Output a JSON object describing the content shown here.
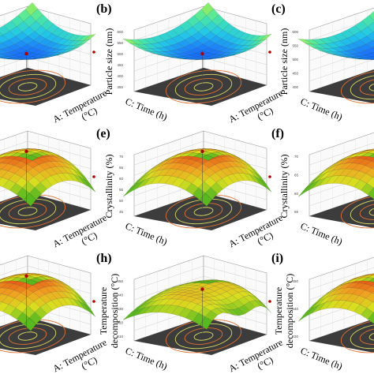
{
  "colors": {
    "floor": "#3c3c3c",
    "contour_a": "#d8d860",
    "contour_b": "#e07030",
    "wall_line": "#9a9a9a",
    "dot": "#b00000",
    "ramp_cool": [
      "#1a6cff",
      "#22c8e8",
      "#4ee8a0",
      "#b8f040"
    ],
    "ramp_warm": [
      "#58b820",
      "#d8e020",
      "#f0a020",
      "#e03010"
    ]
  },
  "chart_data": [
    {
      "panel": "",
      "type": "surface",
      "zlabel": "",
      "xlabel": "A: Temperature (°C)",
      "ylabel": "",
      "surface_shape": "bowl",
      "palette": "cool",
      "ticks": [],
      "visible_crop": "right"
    },
    {
      "panel": "(b)",
      "type": "surface",
      "zlabel": "Particle size (nm)",
      "xlabel": "A: Temperature (°C)",
      "ylabel": "C: Time (h)",
      "surface_shape": "bowl",
      "palette": "cool",
      "ticks": [
        "600",
        "550",
        "500",
        "450",
        "400",
        "350"
      ],
      "visible_crop": "full"
    },
    {
      "panel": "(c)",
      "type": "surface",
      "zlabel": "Particle size (nm)",
      "xlabel": "",
      "ylabel": "C: Time (h)",
      "surface_shape": "bowl",
      "palette": "cool",
      "ticks": [
        "600",
        "550",
        "500",
        "450",
        "400"
      ],
      "visible_crop": "left"
    },
    {
      "panel": "",
      "type": "surface",
      "zlabel": "",
      "xlabel": "A: Temperature (°C)",
      "ylabel": "",
      "surface_shape": "dome",
      "palette": "warm",
      "ticks": [],
      "visible_crop": "right"
    },
    {
      "panel": "(e)",
      "type": "surface",
      "zlabel": "Crystallinity (%)",
      "xlabel": "A: Temperature (°C)",
      "ylabel": "C: Time (h)",
      "surface_shape": "dome",
      "palette": "warm",
      "ticks": [
        "70",
        "65",
        "60",
        "55",
        "50",
        "45"
      ],
      "visible_crop": "full"
    },
    {
      "panel": "(f)",
      "type": "surface",
      "zlabel": "Crystallinity (%)",
      "xlabel": "",
      "ylabel": "C: Time (h)",
      "surface_shape": "dome",
      "palette": "warm",
      "ticks": [
        "70",
        "65",
        "60",
        "55"
      ],
      "visible_crop": "left"
    },
    {
      "panel": "",
      "type": "surface",
      "zlabel": "",
      "xlabel": "A: Temperature (°C)",
      "ylabel": "",
      "surface_shape": "dome",
      "palette": "warm",
      "ticks": [],
      "visible_crop": "right"
    },
    {
      "panel": "(h)",
      "type": "surface",
      "zlabel": "Temperature decomposition (°C)",
      "xlabel": "A: Temperature (°C)",
      "ylabel": "C: Time (h)",
      "surface_shape": "wave",
      "palette": "warm",
      "ticks": [
        "450",
        "440",
        "430",
        "420",
        "410"
      ],
      "visible_crop": "full"
    },
    {
      "panel": "(i)",
      "type": "surface",
      "zlabel": "Temperature decomposition (°C)",
      "xlabel": "",
      "ylabel": "C: Time (h)",
      "surface_shape": "dome",
      "palette": "warm",
      "ticks": [
        "450",
        "440",
        "430"
      ],
      "visible_crop": "left"
    }
  ]
}
